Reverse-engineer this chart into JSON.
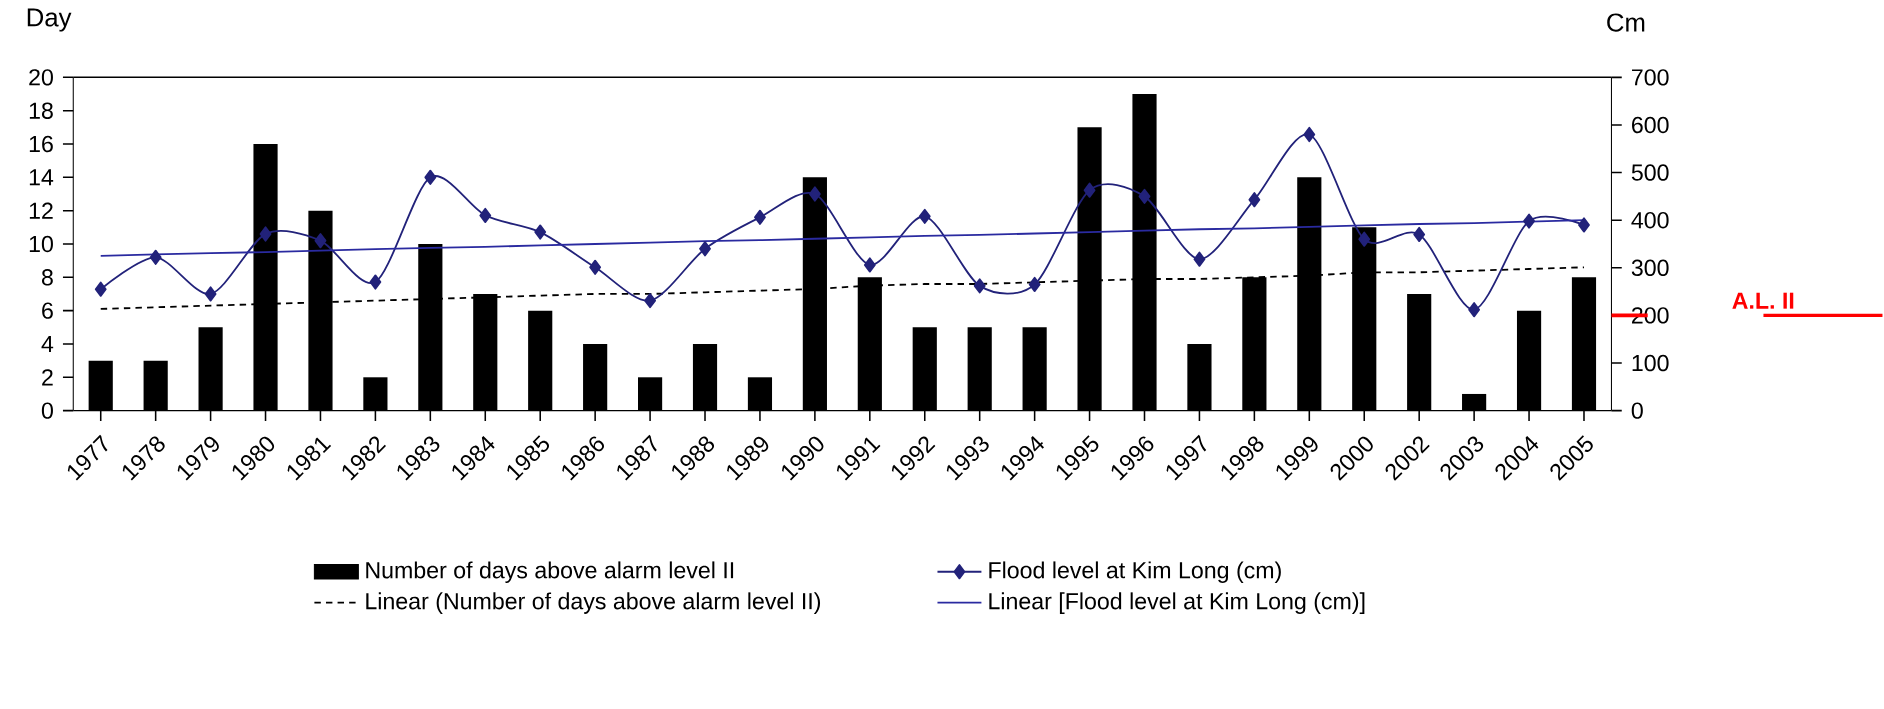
{
  "chart_data": {
    "type": "bar",
    "ylabel": "Day",
    "y2label": "Cm",
    "categories": [
      "1977",
      "1978",
      "1979",
      "1980",
      "1981",
      "1982",
      "1983",
      "1984",
      "1985",
      "1986",
      "1987",
      "1988",
      "1989",
      "1990",
      "1991",
      "1992",
      "1993",
      "1994",
      "1995",
      "1996",
      "1997",
      "1998",
      "1999",
      "2000",
      "2002",
      "2003",
      "2004",
      "2005"
    ],
    "series": [
      {
        "name": "Number of days above alarm level II",
        "color": "#000000",
        "values": [
          3,
          3,
          5,
          16,
          12,
          2,
          10,
          7,
          6,
          4,
          2,
          4,
          2,
          14,
          8,
          5,
          5,
          5,
          17,
          19,
          4,
          8,
          14,
          11,
          7,
          1,
          6,
          8
        ]
      },
      {
        "name": "Flood level at Kim Long (cm)",
        "type": "line",
        "axis": "y2",
        "color": "#22227a",
        "marker": "diamond",
        "values": [
          255,
          322,
          245,
          371,
          357,
          270,
          490,
          410,
          375,
          301,
          231,
          340,
          406,
          455,
          306,
          408,
          262,
          265,
          463,
          450,
          318,
          443,
          580,
          360,
          370,
          212,
          398,
          390
        ]
      },
      {
        "name": "Linear (Number of days above alarm level II)",
        "type": "line",
        "line_style": "dashed",
        "color": "#000000",
        "values": [
          6.1,
          6.2,
          6.3,
          6.4,
          6.5,
          6.6,
          6.7,
          6.8,
          6.9,
          7.0,
          7.0,
          7.1,
          7.2,
          7.3,
          7.5,
          7.6,
          7.6,
          7.7,
          7.8,
          7.9,
          7.9,
          8.0,
          8.1,
          8.3,
          8.3,
          8.4,
          8.5,
          8.6
        ]
      },
      {
        "name": "Linear [Flood level at Kim Long (cm)]",
        "type": "line",
        "axis": "y2",
        "color": "#2a2aa0",
        "values": [
          325,
          328,
          331,
          333,
          336,
          339,
          342,
          344,
          347,
          350,
          353,
          356,
          358,
          361,
          364,
          367,
          369,
          372,
          375,
          378,
          381,
          383,
          386,
          389,
          392,
          394,
          397,
          400
        ]
      }
    ],
    "ylim": [
      0,
      20
    ],
    "yticks": [
      0,
      2,
      4,
      6,
      8,
      10,
      12,
      14,
      16,
      18,
      20
    ],
    "y2lim": [
      0,
      700
    ],
    "y2ticks": [
      0,
      100,
      200,
      300,
      400,
      500,
      600,
      700
    ],
    "ref_lines": [
      {
        "axis": "y2",
        "value": 200,
        "label": "A.L. II",
        "color": "#ff0000"
      }
    ],
    "legend": "bottom",
    "grid": false
  }
}
